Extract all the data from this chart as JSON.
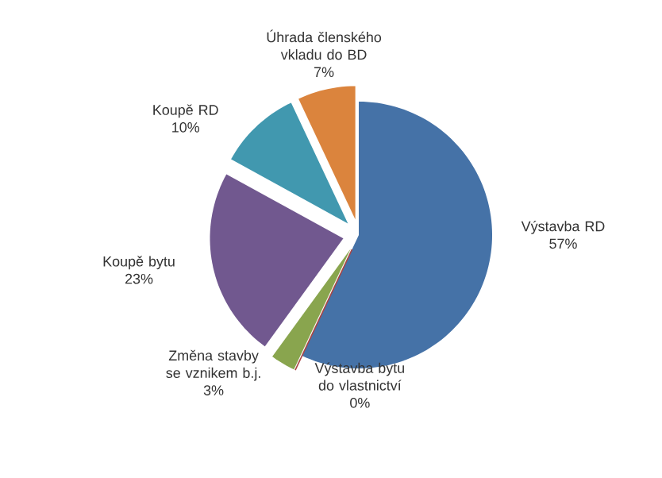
{
  "chart_data": {
    "type": "pie",
    "categories": [
      "Výstavba RD",
      "Výstavba bytu do vlastnictví",
      "Změna stavby se vznikem b.j.",
      "Koupě bytu",
      "Koupě RD",
      "Úhrada členského vkladu do BD"
    ],
    "values": [
      57,
      0,
      3,
      23,
      10,
      7
    ],
    "value_labels": [
      "57%",
      "0%",
      "3%",
      "23%",
      "10%",
      "7%"
    ],
    "colors": [
      "#4572a7",
      "#aa4643",
      "#89a54e",
      "#71588f",
      "#4198af",
      "#db843d"
    ]
  }
}
